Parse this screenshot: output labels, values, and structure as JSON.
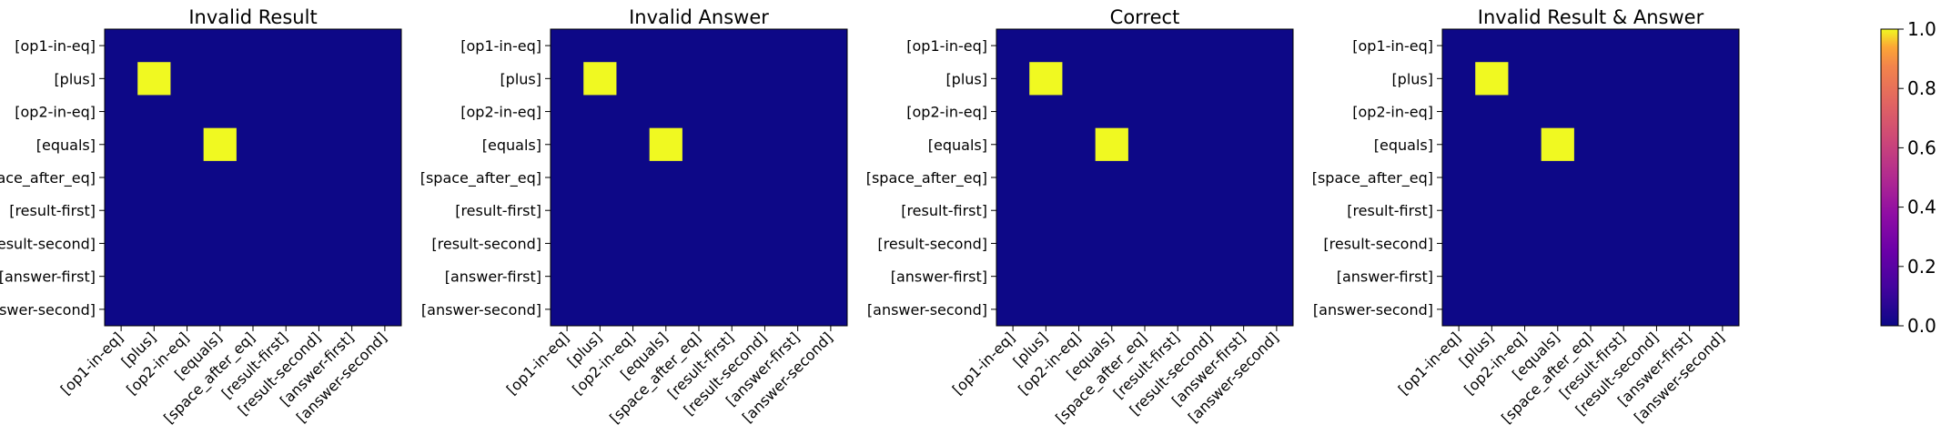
{
  "chart_data": [
    {
      "type": "heatmap",
      "title": "Invalid Result",
      "labels": [
        "[op1-in-eq]",
        "[plus]",
        "[op2-in-eq]",
        "[equals]",
        "[space_after_eq]",
        "[result-first]",
        "[result-second]",
        "[answer-first]",
        "[answer-second]"
      ],
      "cells": [
        {
          "row": 1,
          "col": 1,
          "value": 1.0
        },
        {
          "row": 3,
          "col": 3,
          "value": 1.0
        }
      ],
      "background_value": 0.0
    },
    {
      "type": "heatmap",
      "title": "Invalid Answer",
      "labels": [
        "[op1-in-eq]",
        "[plus]",
        "[op2-in-eq]",
        "[equals]",
        "[space_after_eq]",
        "[result-first]",
        "[result-second]",
        "[answer-first]",
        "[answer-second]"
      ],
      "cells": [
        {
          "row": 1,
          "col": 1,
          "value": 1.0
        },
        {
          "row": 3,
          "col": 3,
          "value": 1.0
        }
      ],
      "background_value": 0.0
    },
    {
      "type": "heatmap",
      "title": "Correct",
      "labels": [
        "[op1-in-eq]",
        "[plus]",
        "[op2-in-eq]",
        "[equals]",
        "[space_after_eq]",
        "[result-first]",
        "[result-second]",
        "[answer-first]",
        "[answer-second]"
      ],
      "cells": [
        {
          "row": 1,
          "col": 1,
          "value": 1.0
        },
        {
          "row": 3,
          "col": 3,
          "value": 1.0
        }
      ],
      "background_value": 0.0
    },
    {
      "type": "heatmap",
      "title": "Invalid Result & Answer",
      "labels": [
        "[op1-in-eq]",
        "[plus]",
        "[op2-in-eq]",
        "[equals]",
        "[space_after_eq]",
        "[result-first]",
        "[result-second]",
        "[answer-first]",
        "[answer-second]"
      ],
      "cells": [
        {
          "row": 1,
          "col": 1,
          "value": 1.0
        },
        {
          "row": 3,
          "col": 3,
          "value": 1.0
        }
      ],
      "background_value": 0.0
    }
  ],
  "colorbar": {
    "colormap": "plasma",
    "range": [
      0.0,
      1.0
    ],
    "ticks": [
      "0.0",
      "0.2",
      "0.4",
      "0.6",
      "0.8",
      "1.0"
    ]
  },
  "colors": {
    "low": "#0d0887",
    "high": "#f0f921"
  }
}
